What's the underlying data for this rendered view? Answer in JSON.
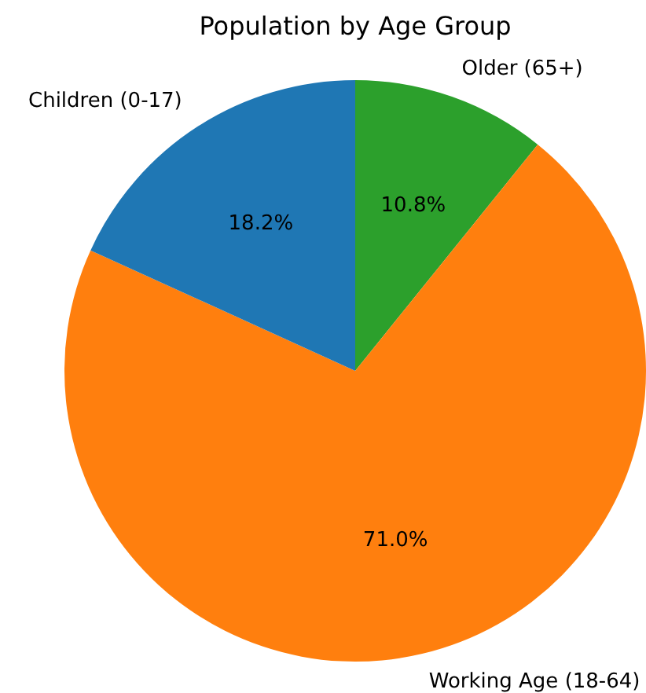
{
  "chart_data": {
    "type": "pie",
    "title": "Population by Age Group",
    "categories": [
      "Children (0-17)",
      "Working Age (18-64)",
      "Older (65+)"
    ],
    "values": [
      18.2,
      71.0,
      10.8
    ],
    "colors": [
      "#1f77b4",
      "#ff7f0e",
      "#2ca02c"
    ],
    "value_labels": [
      "18.2%",
      "71.0%",
      "10.8%"
    ],
    "legend": false
  }
}
